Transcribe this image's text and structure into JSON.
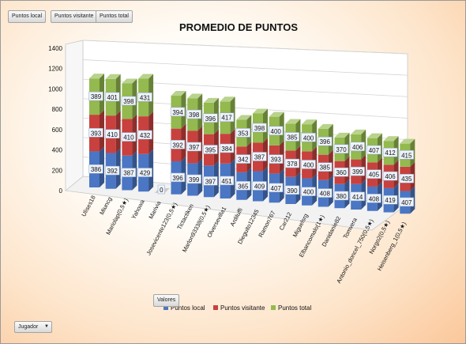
{
  "pivot": {
    "field_buttons": [
      "Puntos local",
      "Puntos visitante",
      "Puntos total"
    ],
    "values_button": "Valores",
    "row_field": "Jugador"
  },
  "colors": {
    "local": "#4a76c3",
    "visitante": "#c8413e",
    "total": "#93b94f"
  },
  "chart_data": {
    "type": "bar",
    "stacked": true,
    "three_d": true,
    "title": "PROMEDIO DE PUNTOS",
    "ylim": [
      0,
      1400
    ],
    "yticks": [
      0,
      200,
      400,
      600,
      800,
      1000,
      1200,
      1400
    ],
    "categories": [
      "Ulises18",
      "Miuncg",
      "Mariolap(0,5★)",
      "Yahowa",
      "Marivia",
      "Josevicente123(0,5★)",
      "Tictactiken",
      "Marlon93338(0,5★)",
      "Olversevilla1",
      "Ardiluffi",
      "Dieguito12345",
      "Ramon767",
      "Car212",
      "Miguelsrg",
      "Elbancomalo(1★)",
      "Danidanie82",
      "Tomvera",
      "Antonio_doncel_750(0,5★)",
      "Norgo2(0,5★)",
      "Heisenberg_1(0,5★)"
    ],
    "series": [
      {
        "name": "Puntos local",
        "values": [
          386,
          392,
          387,
          429,
          0,
          396,
          399,
          397,
          451,
          365,
          409,
          407,
          390,
          400,
          408,
          380,
          414,
          408,
          419,
          407
        ]
      },
      {
        "name": "Puntos visitante",
        "values": [
          393,
          410,
          410,
          432,
          null,
          392,
          397,
          395,
          384,
          342,
          387,
          393,
          378,
          400,
          385,
          360,
          399,
          405,
          406,
          435
        ]
      },
      {
        "name": "Puntos total",
        "values": [
          389,
          401,
          398,
          431,
          null,
          394,
          398,
          396,
          417,
          353,
          398,
          400,
          385,
          400,
          396,
          370,
          406,
          407,
          412,
          415
        ]
      }
    ],
    "legend_position": "bottom",
    "gridlines": true
  }
}
